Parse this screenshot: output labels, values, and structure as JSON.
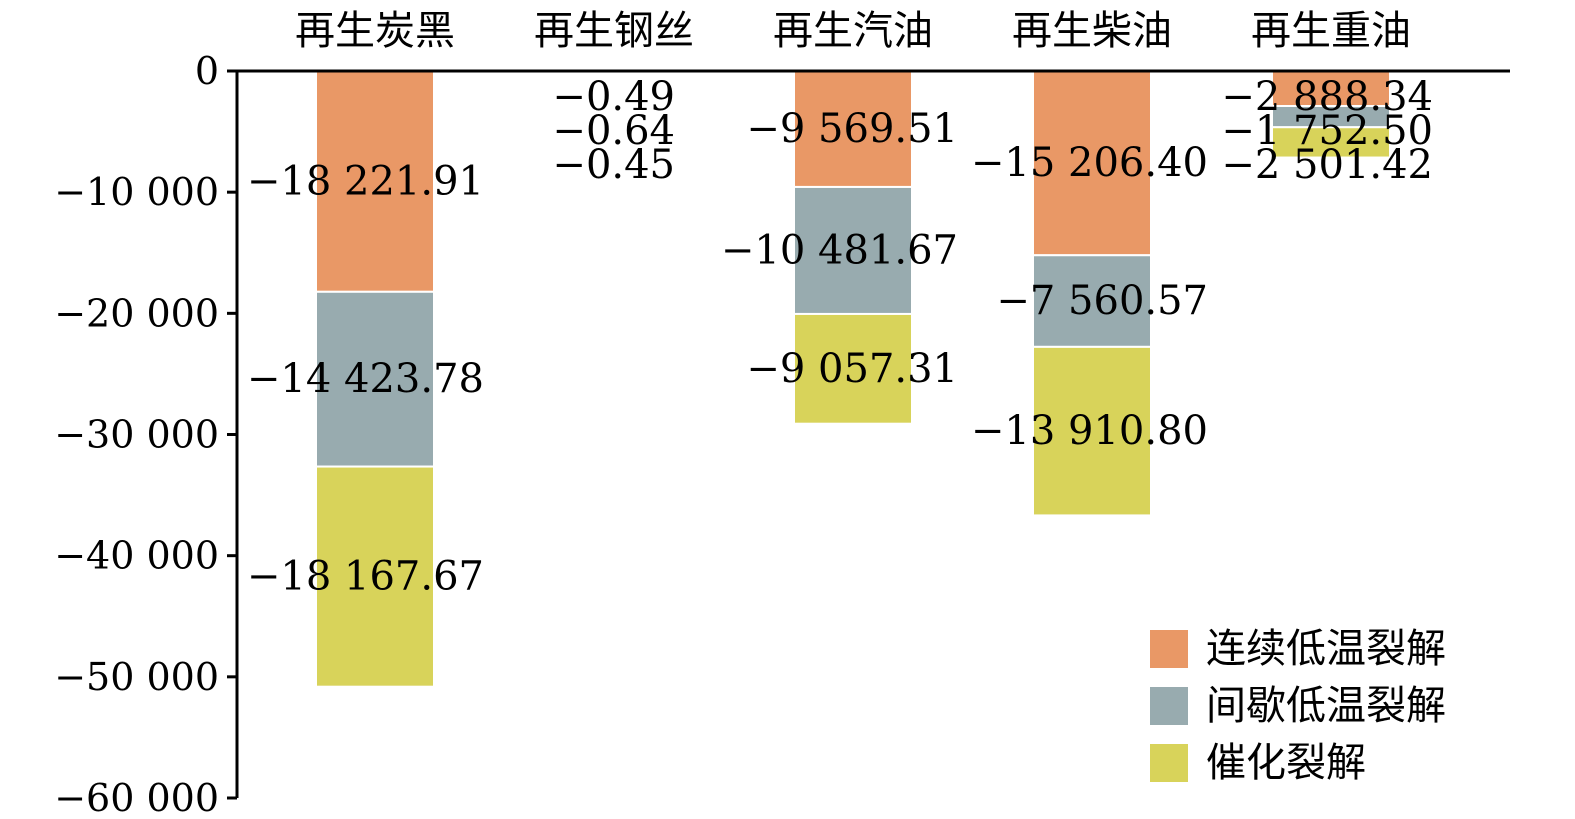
{
  "chart_data": {
    "type": "bar",
    "stacked": true,
    "categories": [
      "再生炭黑",
      "再生钢丝",
      "再生汽油",
      "再生柴油",
      "再生重油"
    ],
    "series": [
      {
        "name": "连续低温裂解",
        "color": "#E99866",
        "values": [
          -18221.91,
          -0.49,
          -9569.51,
          -15206.4,
          -2888.34
        ]
      },
      {
        "name": "间歇低温裂解",
        "color": "#98ABAF",
        "values": [
          -14423.78,
          -0.64,
          -10481.67,
          -7560.57,
          -1752.5
        ]
      },
      {
        "name": "催化裂解",
        "color": "#D8D35A",
        "values": [
          -18167.67,
          -0.45,
          -9057.31,
          -13910.8,
          -2501.42
        ]
      }
    ],
    "data_labels": [
      [
        "−18 221.91",
        "−0.49",
        "−9 569.51",
        "−15 206.40",
        "−2 888.34"
      ],
      [
        "−14 423.78",
        "−0.64",
        "−10 481.67",
        "−7 560.57",
        "−1 752.50"
      ],
      [
        "−18 167.67",
        "−0.45",
        "−9 057.31",
        "−13 910.80",
        "−2 501.42"
      ]
    ],
    "yticks": [
      0,
      -10000,
      -20000,
      -30000,
      -40000,
      -50000,
      -60000
    ],
    "ytick_labels": [
      "0",
      "−10 000",
      "−20 000",
      "−30 000",
      "−40 000",
      "−50 000",
      "−60 000"
    ],
    "ylim": [
      -60000,
      0
    ],
    "xaxis_position": "top",
    "legend_position": "bottom-right",
    "grid": false,
    "title": "",
    "xlabel": "",
    "ylabel": ""
  }
}
